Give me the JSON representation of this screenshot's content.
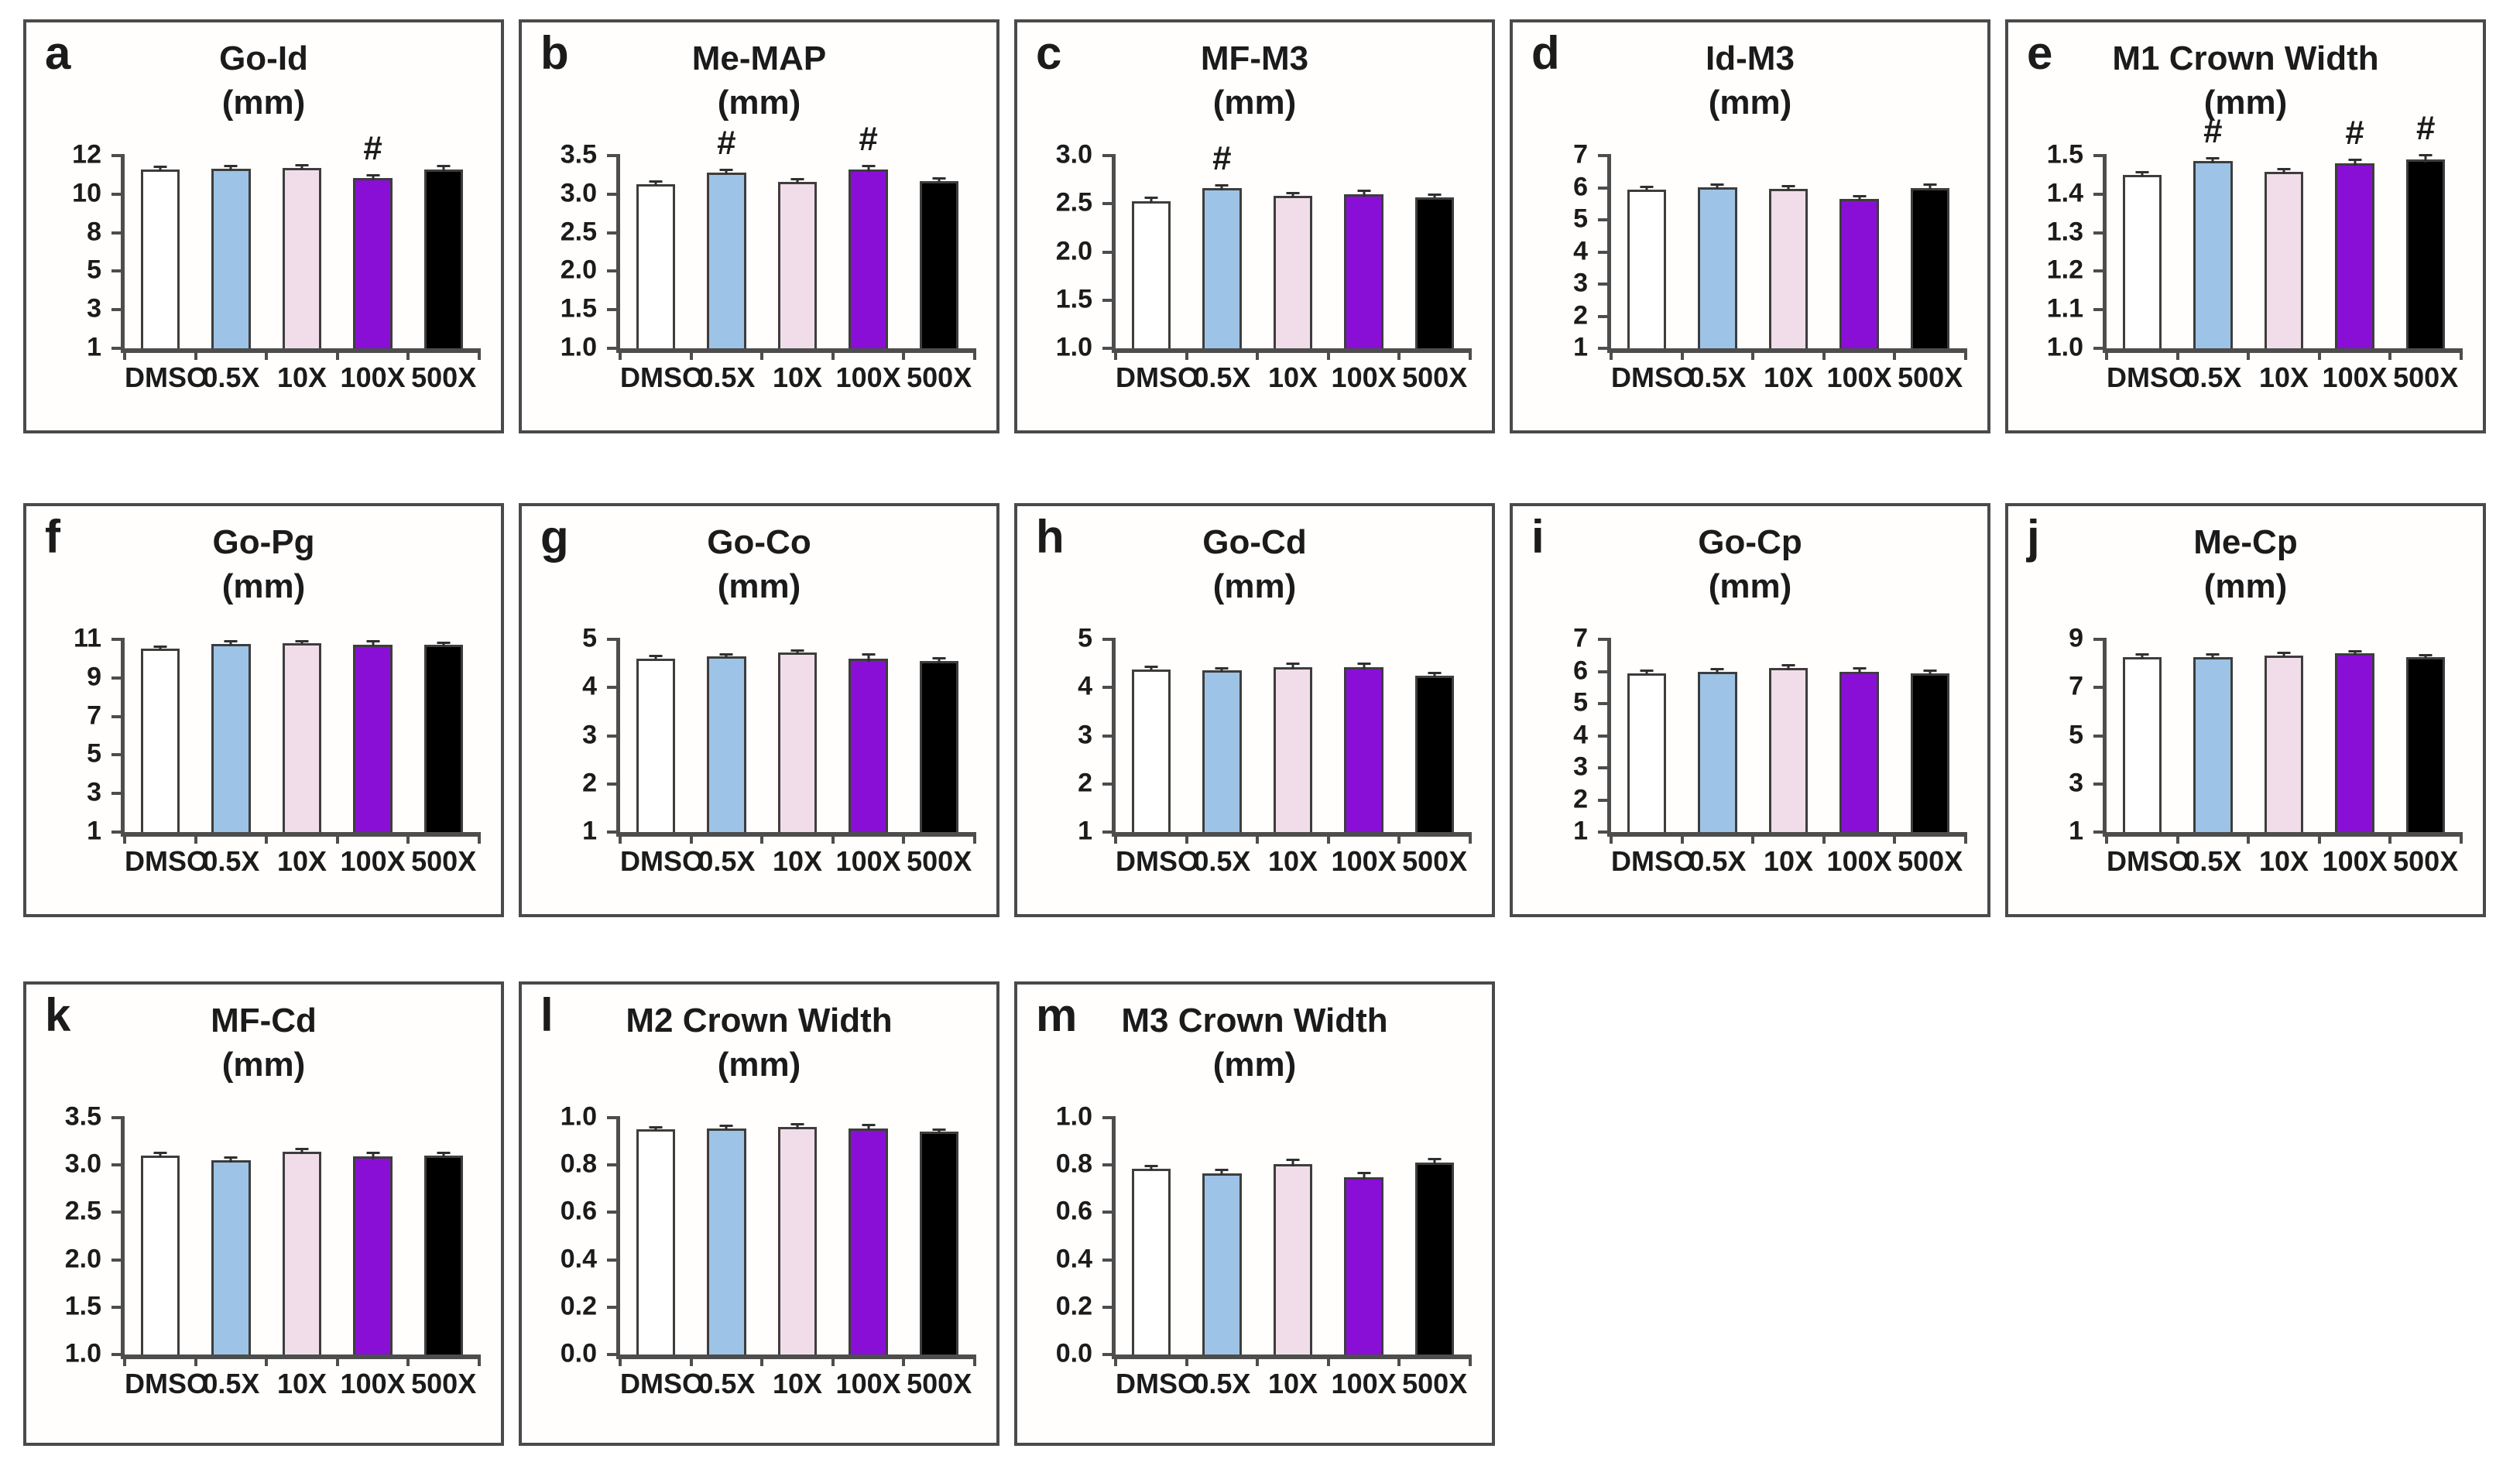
{
  "figure": {
    "unit_label": "(mm)",
    "categories": [
      "DMSO",
      "0.5X",
      "10X",
      "100X",
      "500X"
    ],
    "series_colors": [
      "#ffffff",
      "#9dc3e6",
      "#f1dde9",
      "#8a0fd6",
      "#000000"
    ],
    "sig_symbol": "#"
  },
  "chart_data": [
    {
      "label": "a",
      "type": "bar",
      "title": "Go-Id",
      "subtitle": "(mm)",
      "categories": [
        "DMSO",
        "0.5X",
        "10X",
        "100X",
        "500X"
      ],
      "values": [
        11.2,
        11.25,
        11.3,
        10.7,
        11.2
      ],
      "errors": [
        0.08,
        0.07,
        0.08,
        0.1,
        0.12
      ],
      "sig": [
        "",
        "",
        "",
        "#",
        ""
      ],
      "ylim": [
        1,
        12
      ],
      "yticks": [
        "12",
        "10",
        "8",
        "5",
        "3",
        "1"
      ],
      "ytick_pos": [
        12,
        9.8,
        7.6,
        5.4,
        3.2,
        1
      ]
    },
    {
      "label": "b",
      "type": "bar",
      "title": "Me-MAP",
      "subtitle": "(mm)",
      "categories": [
        "DMSO",
        "0.5X",
        "10X",
        "100X",
        "500X"
      ],
      "values": [
        3.13,
        3.28,
        3.16,
        3.32,
        3.17
      ],
      "errors": [
        0.015,
        0.02,
        0.015,
        0.03,
        0.015
      ],
      "sig": [
        "",
        "#",
        "",
        "#",
        ""
      ],
      "ylim": [
        1,
        3.5
      ],
      "yticks": [
        "3.5",
        "3.0",
        "2.5",
        "2.0",
        "1.5",
        "1.0"
      ]
    },
    {
      "label": "c",
      "type": "bar",
      "title": "MF-M3",
      "subtitle": "(mm)",
      "categories": [
        "DMSO",
        "0.5X",
        "10X",
        "100X",
        "500X"
      ],
      "values": [
        2.53,
        2.66,
        2.58,
        2.6,
        2.57
      ],
      "errors": [
        0.02,
        0.02,
        0.015,
        0.025,
        0.015
      ],
      "sig": [
        "",
        "#",
        "",
        "",
        ""
      ],
      "ylim": [
        1,
        3
      ],
      "yticks": [
        "3.0",
        "2.5",
        "2.0",
        "1.5",
        "1.0"
      ]
    },
    {
      "label": "d",
      "type": "bar",
      "title": "Id-M3",
      "subtitle": "(mm)",
      "categories": [
        "DMSO",
        "0.5X",
        "10X",
        "100X",
        "500X"
      ],
      "values": [
        5.95,
        6.02,
        5.97,
        5.65,
        6.0
      ],
      "errors": [
        0.04,
        0.05,
        0.05,
        0.05,
        0.06
      ],
      "ylim": [
        1,
        7
      ],
      "yticks": [
        "7",
        "6",
        "5",
        "4",
        "3",
        "2",
        "1"
      ]
    },
    {
      "label": "e",
      "type": "bar",
      "title": "M1 Crown Width",
      "subtitle": "(mm)",
      "categories": [
        "DMSO",
        "0.5X",
        "10X",
        "100X",
        "500X"
      ],
      "values": [
        1.45,
        1.485,
        1.457,
        1.48,
        1.49
      ],
      "errors": [
        0.004,
        0.005,
        0.005,
        0.006,
        0.008
      ],
      "sig": [
        "",
        "#",
        "",
        "#",
        "#"
      ],
      "ylim": [
        1,
        1.5
      ],
      "yticks": [
        "1.5",
        "1.4",
        "1.3",
        "1.2",
        "1.1",
        "1.0"
      ]
    },
    {
      "label": "f",
      "type": "bar",
      "title": "Go-Pg",
      "subtitle": "(mm)",
      "categories": [
        "DMSO",
        "0.5X",
        "10X",
        "100X",
        "500X"
      ],
      "values": [
        10.5,
        10.75,
        10.8,
        10.73,
        10.7
      ],
      "errors": [
        0.06,
        0.08,
        0.05,
        0.1,
        0.07
      ],
      "ylim": [
        1,
        11
      ],
      "yticks": [
        "11",
        "9",
        "7",
        "5",
        "3",
        "1"
      ]
    },
    {
      "label": "g",
      "type": "bar",
      "title": "Go-Co",
      "subtitle": "(mm)",
      "categories": [
        "DMSO",
        "0.5X",
        "10X",
        "100X",
        "500X"
      ],
      "values": [
        4.6,
        4.64,
        4.72,
        4.6,
        4.55
      ],
      "errors": [
        0.025,
        0.03,
        0.03,
        0.06,
        0.04
      ],
      "ylim": [
        1,
        5
      ],
      "yticks": [
        "5",
        "4",
        "3",
        "2",
        "1"
      ]
    },
    {
      "label": "h",
      "type": "bar",
      "title": "Go-Cd",
      "subtitle": "(mm)",
      "categories": [
        "DMSO",
        "0.5X",
        "10X",
        "100X",
        "500X"
      ],
      "values": [
        4.38,
        4.35,
        4.42,
        4.42,
        4.25
      ],
      "errors": [
        0.03,
        0.03,
        0.05,
        0.05,
        0.03
      ],
      "ylim": [
        1,
        5
      ],
      "yticks": [
        "5",
        "4",
        "3",
        "2",
        "1"
      ]
    },
    {
      "label": "i",
      "type": "bar",
      "title": "Go-Cp",
      "subtitle": "(mm)",
      "categories": [
        "DMSO",
        "0.5X",
        "10X",
        "100X",
        "500X"
      ],
      "values": [
        5.95,
        5.98,
        6.1,
        6.0,
        5.95
      ],
      "errors": [
        0.04,
        0.05,
        0.06,
        0.06,
        0.05
      ],
      "ylim": [
        1,
        7
      ],
      "yticks": [
        "7",
        "6",
        "5",
        "4",
        "3",
        "2",
        "1"
      ]
    },
    {
      "label": "j",
      "type": "bar",
      "title": "Me-Cp",
      "subtitle": "(mm)",
      "categories": [
        "DMSO",
        "0.5X",
        "10X",
        "100X",
        "500X"
      ],
      "values": [
        8.25,
        8.27,
        8.33,
        8.42,
        8.25
      ],
      "errors": [
        0.06,
        0.07,
        0.06,
        0.05,
        0.05
      ],
      "ylim": [
        1,
        9
      ],
      "yticks": [
        "9",
        "7",
        "5",
        "3",
        "1"
      ]
    },
    {
      "label": "k",
      "type": "bar",
      "title": "MF-Cd",
      "subtitle": "(mm)",
      "categories": [
        "DMSO",
        "0.5X",
        "10X",
        "100X",
        "500X"
      ],
      "values": [
        3.1,
        3.05,
        3.14,
        3.09,
        3.1
      ],
      "errors": [
        0.02,
        0.02,
        0.02,
        0.03,
        0.02
      ],
      "ylim": [
        1,
        3.5
      ],
      "yticks": [
        "3.5",
        "3.0",
        "2.5",
        "2.0",
        "1.5",
        "1.0"
      ]
    },
    {
      "label": "l",
      "type": "bar",
      "title": "M2 Crown Width",
      "subtitle": "(mm)",
      "categories": [
        "DMSO",
        "0.5X",
        "10X",
        "100X",
        "500X"
      ],
      "values": [
        0.95,
        0.955,
        0.96,
        0.955,
        0.94
      ],
      "errors": [
        0.005,
        0.006,
        0.008,
        0.008,
        0.006
      ],
      "ylim": [
        0,
        1
      ],
      "yticks": [
        "1.0",
        "0.8",
        "0.6",
        "0.4",
        "0.2",
        "0.0"
      ]
    },
    {
      "label": "m",
      "type": "bar",
      "title": "M3 Crown Width",
      "subtitle": "(mm)",
      "categories": [
        "DMSO",
        "0.5X",
        "10X",
        "100X",
        "500X"
      ],
      "values": [
        0.785,
        0.765,
        0.805,
        0.75,
        0.81
      ],
      "errors": [
        0.006,
        0.008,
        0.012,
        0.01,
        0.01
      ],
      "ylim": [
        0,
        1
      ],
      "yticks": [
        "1.0",
        "0.8",
        "0.6",
        "0.4",
        "0.2",
        "0.0"
      ]
    }
  ]
}
